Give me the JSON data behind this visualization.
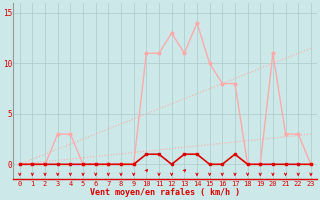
{
  "x": [
    0,
    1,
    2,
    3,
    4,
    5,
    6,
    7,
    8,
    9,
    10,
    11,
    12,
    13,
    14,
    15,
    16,
    17,
    18,
    19,
    20,
    21,
    22,
    23
  ],
  "rafales": [
    0,
    0,
    0,
    3,
    3,
    0,
    0,
    0,
    0,
    0,
    11,
    11,
    13,
    11,
    14,
    10,
    8,
    8,
    0,
    0,
    11,
    3,
    3,
    0
  ],
  "moyen": [
    0,
    0,
    0,
    0,
    0,
    0,
    0,
    0,
    0,
    0,
    0,
    0,
    0,
    0,
    0,
    0,
    0,
    0,
    0,
    0,
    0,
    0,
    0,
    0
  ],
  "trend_high": [
    0,
    0.5,
    1,
    1.5,
    2,
    2.5,
    3,
    3.5,
    4,
    4.5,
    5,
    5.5,
    6,
    6.5,
    7,
    7.5,
    8,
    8.5,
    9,
    9.5,
    10,
    10.5,
    11,
    11.5
  ],
  "trend_low": [
    0,
    0.13,
    0.26,
    0.39,
    0.52,
    0.65,
    0.78,
    0.91,
    1.04,
    1.17,
    1.3,
    1.43,
    1.56,
    1.69,
    1.82,
    1.95,
    2.08,
    2.21,
    2.34,
    2.47,
    2.6,
    2.73,
    2.86,
    3.0
  ],
  "wind_low_line": [
    0,
    0,
    0,
    0,
    0,
    0,
    0,
    0,
    0,
    0,
    1,
    1,
    0,
    1,
    1,
    0,
    0,
    1,
    0,
    0,
    0,
    0,
    0,
    0
  ],
  "arrow_up_indices": [
    10,
    13
  ],
  "bg_color": "#cce8e8",
  "grid_color": "#aacccc",
  "color_light": "#ffaaaa",
  "color_dark": "#dd0000",
  "xlabel": "Vent moyen/en rafales ( km/h )",
  "xlim": [
    -0.5,
    23.5
  ],
  "ylim": [
    -1.5,
    16
  ],
  "yticks": [
    0,
    5,
    10,
    15
  ]
}
